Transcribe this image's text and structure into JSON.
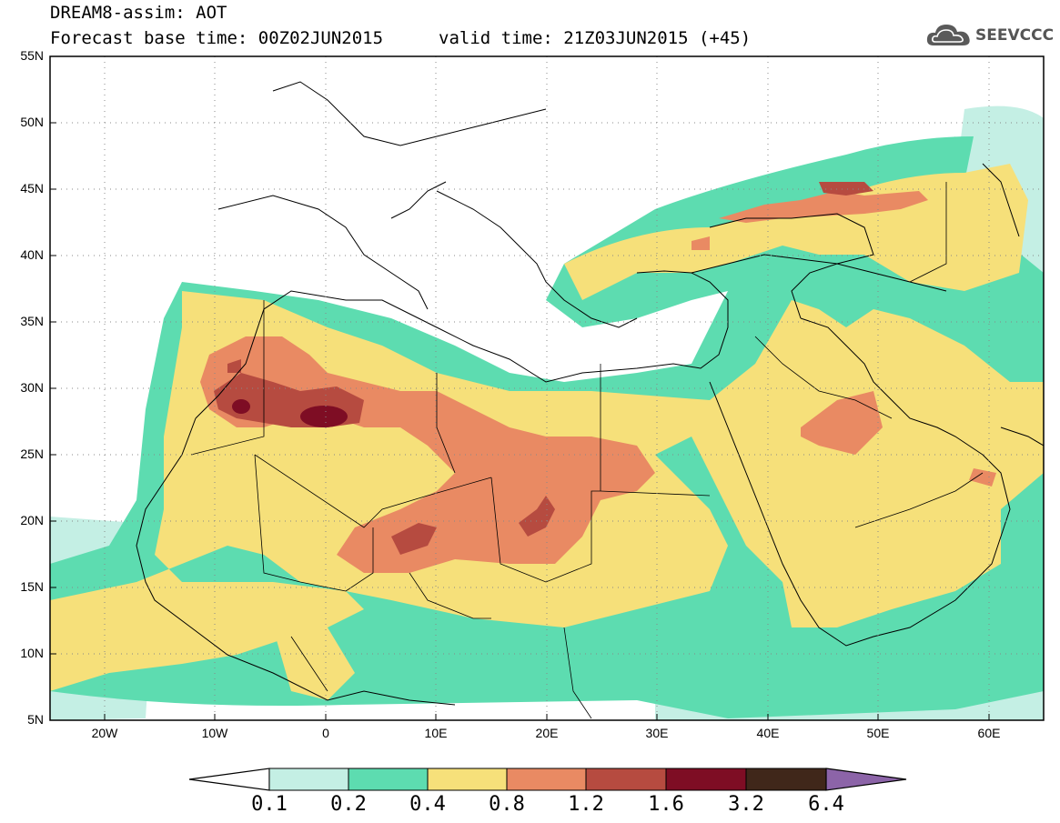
{
  "header": {
    "title": "DREAM8-assim: AOT",
    "forecast_base": "Forecast base time: 00Z02JUN2015",
    "valid_time": "valid time: 21Z03JUN2015 (+45)",
    "logo_text": "SEEVCCC"
  },
  "map": {
    "variable": "AOT",
    "lon_range": [
      -25,
      65
    ],
    "lat_range": [
      5,
      55
    ],
    "lat_labels": [
      "55N",
      "50N",
      "45N",
      "40N",
      "35N",
      "30N",
      "25N",
      "20N",
      "15N",
      "10N",
      "5N"
    ],
    "lon_labels": [
      "20W",
      "10W",
      "0",
      "10E",
      "20E",
      "30E",
      "40E",
      "50E",
      "60E"
    ],
    "gridlines": "dotted"
  },
  "colorbar": {
    "levels": [
      "0.1",
      "0.2",
      "0.4",
      "0.8",
      "1.2",
      "1.6",
      "3.2",
      "6.4"
    ],
    "colors": [
      "#c4efe4",
      "#5ddcb0",
      "#f6e07a",
      "#e98a63",
      "#b64b40",
      "#7e0d24",
      "#40271a"
    ],
    "under_color": "#ffffff",
    "over_color": "#8c64a8"
  },
  "colors": {
    "background": "#ffffff",
    "frame": "#000000",
    "coast": "#000000",
    "logo": "#555555"
  }
}
